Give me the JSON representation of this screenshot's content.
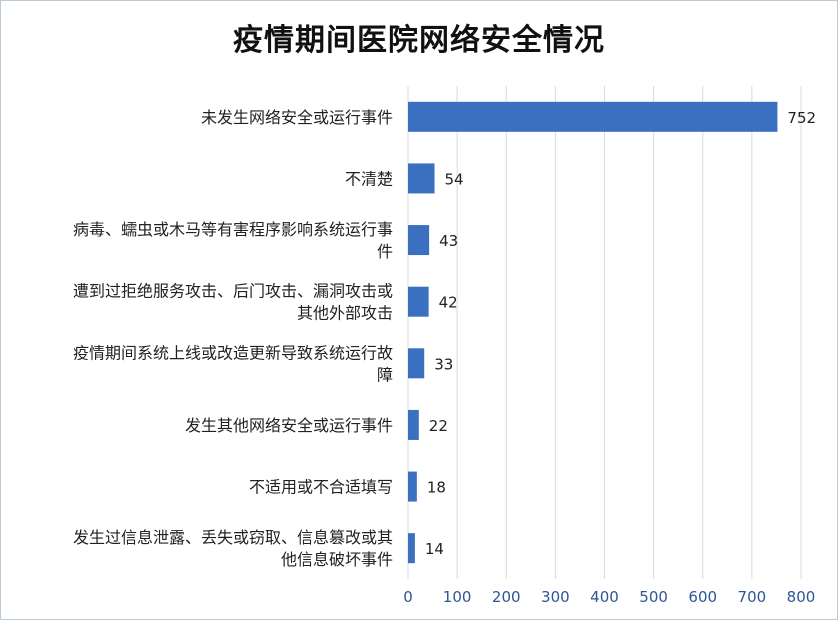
{
  "chart_data": {
    "type": "bar",
    "orientation": "horizontal",
    "title": "疫情期间医院网络安全情况",
    "categories": [
      [
        "未发生网络安全或运行事件"
      ],
      [
        "不清楚"
      ],
      [
        "病毒、蠕虫或木马等有害程序影响系统运行事",
        "件"
      ],
      [
        "遭到过拒绝服务攻击、后门攻击、漏洞攻击或",
        "其他外部攻击"
      ],
      [
        "疫情期间系统上线或改造更新导致系统运行故",
        "障"
      ],
      [
        "发生其他网络安全或运行事件"
      ],
      [
        "不适用或不合适填写"
      ],
      [
        "发生过信息泄露、丢失或窃取、信息篡改或其",
        "他信息破坏事件"
      ]
    ],
    "values": [
      752,
      54,
      43,
      42,
      33,
      22,
      18,
      14
    ],
    "xlim": [
      0,
      800
    ],
    "xticks": [
      0,
      100,
      200,
      300,
      400,
      500,
      600,
      700,
      800
    ],
    "grid": "vertical",
    "legend": "none",
    "bar_color": "#3a70bf"
  }
}
